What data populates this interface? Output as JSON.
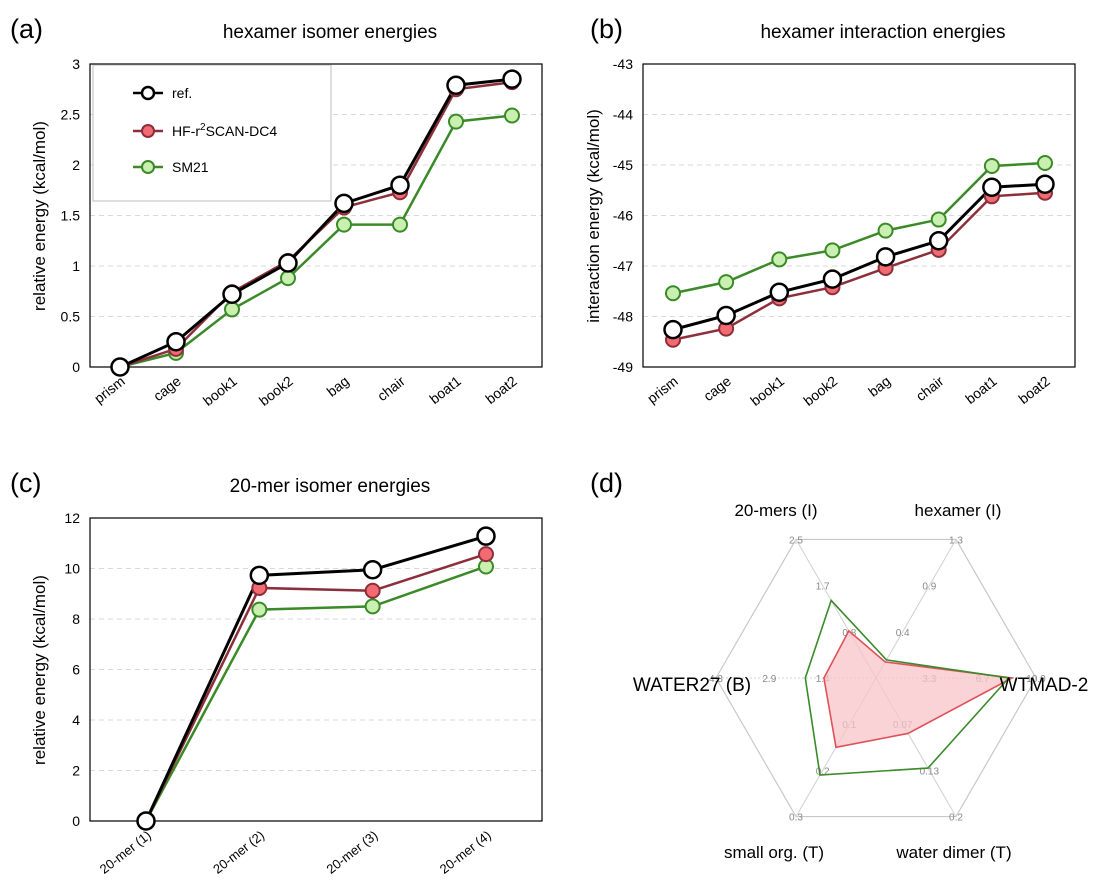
{
  "panels": {
    "a": "(a)",
    "b": "(b)",
    "c": "(c)",
    "d": "(d)"
  },
  "legend": {
    "ref": "ref.",
    "hf_prefix": "HF-r",
    "hf_sup": "2",
    "hf_suffix": "SCAN-DC4",
    "sm21": "SM21"
  },
  "colors": {
    "ref_line": "#000000",
    "ref_fill": "#ffffff",
    "hf_line": "#8c2f3a",
    "hf_fill": "#f26b72",
    "sm_line": "#3a8a28",
    "sm_fill": "#c9f0b0",
    "radar_hf_fill": "#f7c4c8",
    "grid": "#d9d9d9"
  },
  "chart_data": [
    {
      "type": "line",
      "title": "hexamer isomer energies",
      "ylabel": "relative energy (kcal/mol)",
      "xlabel": "",
      "categories": [
        "prism",
        "cage",
        "book1",
        "book2",
        "bag",
        "chair",
        "boat1",
        "boat2"
      ],
      "ylim": [
        0,
        3
      ],
      "yticks": [
        "0",
        "0.5",
        "1",
        "1.5",
        "2",
        "2.5",
        "3"
      ],
      "grid": true,
      "legend_position": "top-left",
      "series": [
        {
          "name": "ref.",
          "values": [
            0.0,
            0.25,
            0.72,
            1.03,
            1.62,
            1.8,
            2.79,
            2.85
          ]
        },
        {
          "name": "HF-r2SCAN-DC4",
          "values": [
            0.0,
            0.18,
            0.74,
            1.05,
            1.58,
            1.73,
            2.75,
            2.82
          ]
        },
        {
          "name": "SM21",
          "values": [
            0.0,
            0.14,
            0.57,
            0.88,
            1.41,
            1.41,
            2.43,
            2.49
          ]
        }
      ]
    },
    {
      "type": "line",
      "title": "hexamer interaction energies",
      "ylabel": "interaction energy (kcal/mol)",
      "xlabel": "",
      "categories": [
        "prism",
        "cage",
        "book1",
        "book2",
        "bag",
        "chair",
        "boat1",
        "boat2"
      ],
      "ylim": [
        -49,
        -43
      ],
      "yticks": [
        "-49",
        "-48",
        "-47",
        "-46",
        "-45",
        "-44",
        "-43"
      ],
      "grid": true,
      "series": [
        {
          "name": "ref.",
          "values": [
            -48.26,
            -47.98,
            -47.52,
            -47.26,
            -46.82,
            -46.5,
            -45.44,
            -45.38
          ]
        },
        {
          "name": "HF-r2SCAN-DC4",
          "values": [
            -48.46,
            -48.24,
            -47.64,
            -47.42,
            -47.04,
            -46.68,
            -45.62,
            -45.55
          ]
        },
        {
          "name": "SM21",
          "values": [
            -47.54,
            -47.32,
            -46.87,
            -46.69,
            -46.3,
            -46.08,
            -45.02,
            -44.96
          ]
        }
      ]
    },
    {
      "type": "line",
      "title": "20-mer isomer energies",
      "ylabel": "relative energy (kcal/mol)",
      "xlabel": "",
      "categories": [
        "20-mer (1)",
        "20-mer (2)",
        "20-mer (3)",
        "20-mer (4)"
      ],
      "ylim": [
        0,
        12
      ],
      "yticks": [
        "0",
        "2",
        "4",
        "6",
        "8",
        "10",
        "12"
      ],
      "grid": true,
      "series": [
        {
          "name": "ref.",
          "values": [
            0.0,
            9.73,
            9.95,
            11.28
          ]
        },
        {
          "name": "HF-r2SCAN-DC4",
          "values": [
            0.0,
            9.23,
            9.12,
            10.57
          ]
        },
        {
          "name": "SM21",
          "values": [
            0.0,
            8.37,
            8.5,
            10.08
          ]
        }
      ]
    },
    {
      "type": "radar",
      "axes": [
        {
          "label": "hexamer (I)",
          "max": 1.3,
          "ticks": [
            "0.4",
            "0.9",
            "1.3"
          ]
        },
        {
          "label": "WTMAD-2",
          "max": 10.0,
          "ticks": [
            "3.3",
            "6.7",
            "10.0"
          ]
        },
        {
          "label": "water dimer (T)",
          "max": 0.2,
          "ticks": [
            "0.07",
            "0.13",
            "0.2"
          ]
        },
        {
          "label": "small org. (T)",
          "max": 0.3,
          "ticks": [
            "0.1",
            "0.2",
            "0.3"
          ]
        },
        {
          "label": "WATER27 (B)",
          "max": 4.3,
          "ticks": [
            "1.4",
            "2.9",
            "4.3"
          ]
        },
        {
          "label": "20-mers (I)",
          "max": 2.5,
          "ticks": [
            "0.8",
            "1.7",
            "2.5"
          ]
        }
      ],
      "series": [
        {
          "name": "HF-r2SCAN-DC4",
          "values": [
            0.15,
            8.5,
            0.08,
            0.15,
            1.4,
            0.85
          ]
        },
        {
          "name": "SM21",
          "values": [
            0.17,
            8.3,
            0.13,
            0.21,
            1.9,
            1.4
          ]
        }
      ]
    }
  ]
}
